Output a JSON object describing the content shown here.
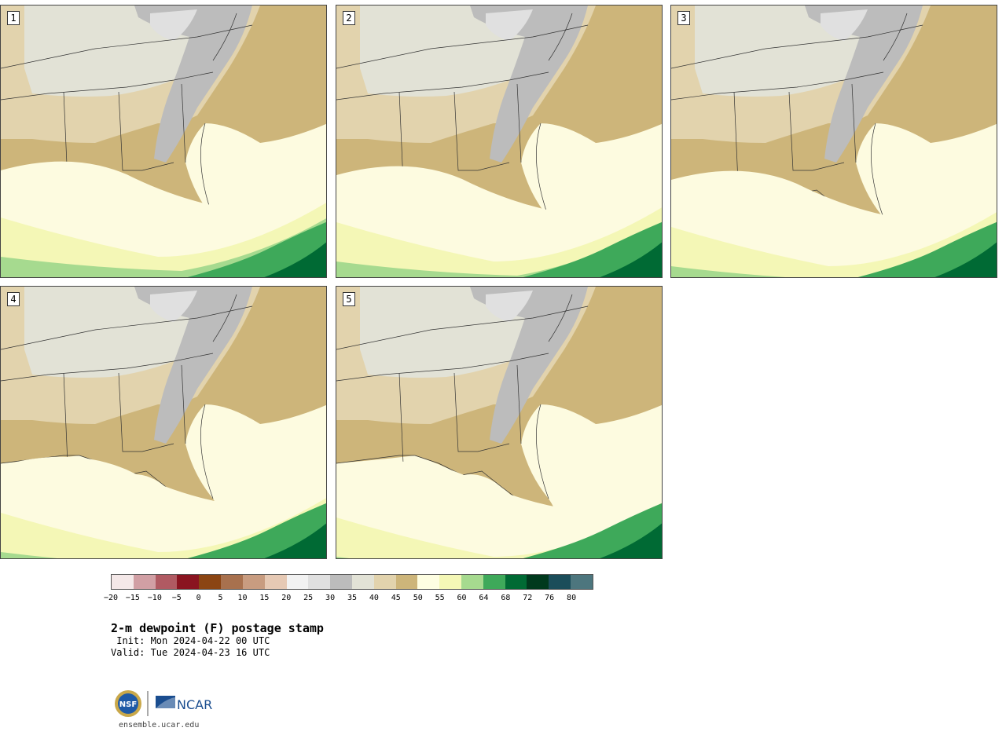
{
  "panels": [
    {
      "label": "1"
    },
    {
      "label": "2"
    },
    {
      "label": "3"
    },
    {
      "label": "4"
    },
    {
      "label": "5"
    }
  ],
  "colorbar": {
    "colors": [
      "#f4e8e8",
      "#d19fa4",
      "#b05a62",
      "#8a1420",
      "#8b4513",
      "#a8714e",
      "#c89c80",
      "#e6c9b4",
      "#f2f2f2",
      "#e0e0e0",
      "#bcbcbc",
      "#e2e2d6",
      "#e2d3ad",
      "#cdb57a",
      "#fefee2",
      "#f4f7b6",
      "#a6da8f",
      "#3ea95a",
      "#006a34",
      "#00391d",
      "#1b4d5a",
      "#4d767e"
    ],
    "ticks": [
      "−20",
      "−15",
      "−10",
      "−5",
      "0",
      "5",
      "10",
      "15",
      "20",
      "25",
      "30",
      "35",
      "40",
      "45",
      "50",
      "55",
      "60",
      "64",
      "68",
      "72",
      "76",
      "80"
    ]
  },
  "title": "2-m dewpoint (F) postage stamp",
  "init": " Init: Mon 2024-04-22 00 UTC",
  "valid": "Valid: Tue 2024-04-23 16 UTC",
  "logo": {
    "nsf": "NSF",
    "ncar": "NCAR"
  },
  "site": "ensemble.ucar.edu"
}
